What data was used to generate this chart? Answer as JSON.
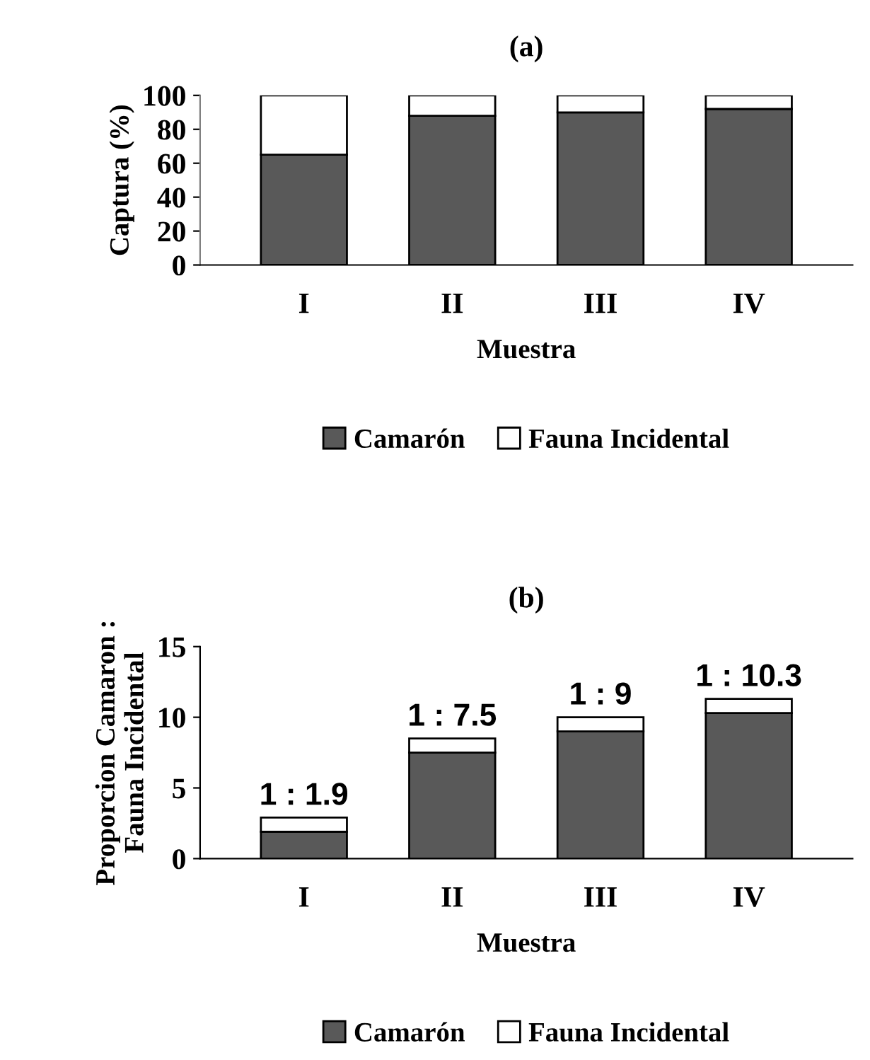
{
  "chart_data": [
    {
      "type": "bar",
      "title": "(a)",
      "xlabel": "Muestra",
      "ylabel": "Captura (%)",
      "stacked": true,
      "categories": [
        "I",
        "II",
        "III",
        "IV"
      ],
      "series": [
        {
          "name": "Camarón",
          "color": "#595959",
          "values": [
            65,
            88,
            90,
            92
          ]
        },
        {
          "name": "Fauna Incidental",
          "color": "#ffffff",
          "values": [
            35,
            12,
            10,
            8
          ]
        }
      ],
      "ylim": [
        0,
        100
      ],
      "yticks": [
        0,
        20,
        40,
        60,
        80,
        100
      ],
      "grid": false,
      "legend": "bottom"
    },
    {
      "type": "bar",
      "title": "(b)",
      "xlabel": "Muestra",
      "ylabel": "Proporcion Camaron :\nFauna Incidental",
      "stacked": true,
      "categories": [
        "I",
        "II",
        "III",
        "IV"
      ],
      "series": [
        {
          "name": "Camarón",
          "color": "#595959",
          "values": [
            1.9,
            7.5,
            9,
            10.3
          ],
          "value_labels": [
            "1 : 1.9",
            "1 : 7.5",
            "1 : 9",
            "1 : 10.3"
          ]
        },
        {
          "name": "Fauna Incidental",
          "color": "#ffffff",
          "values": [
            1,
            1,
            1,
            1
          ]
        }
      ],
      "ylim": [
        0,
        15
      ],
      "yticks": [
        0,
        5,
        10,
        15
      ],
      "grid": false,
      "legend": "bottom"
    }
  ]
}
